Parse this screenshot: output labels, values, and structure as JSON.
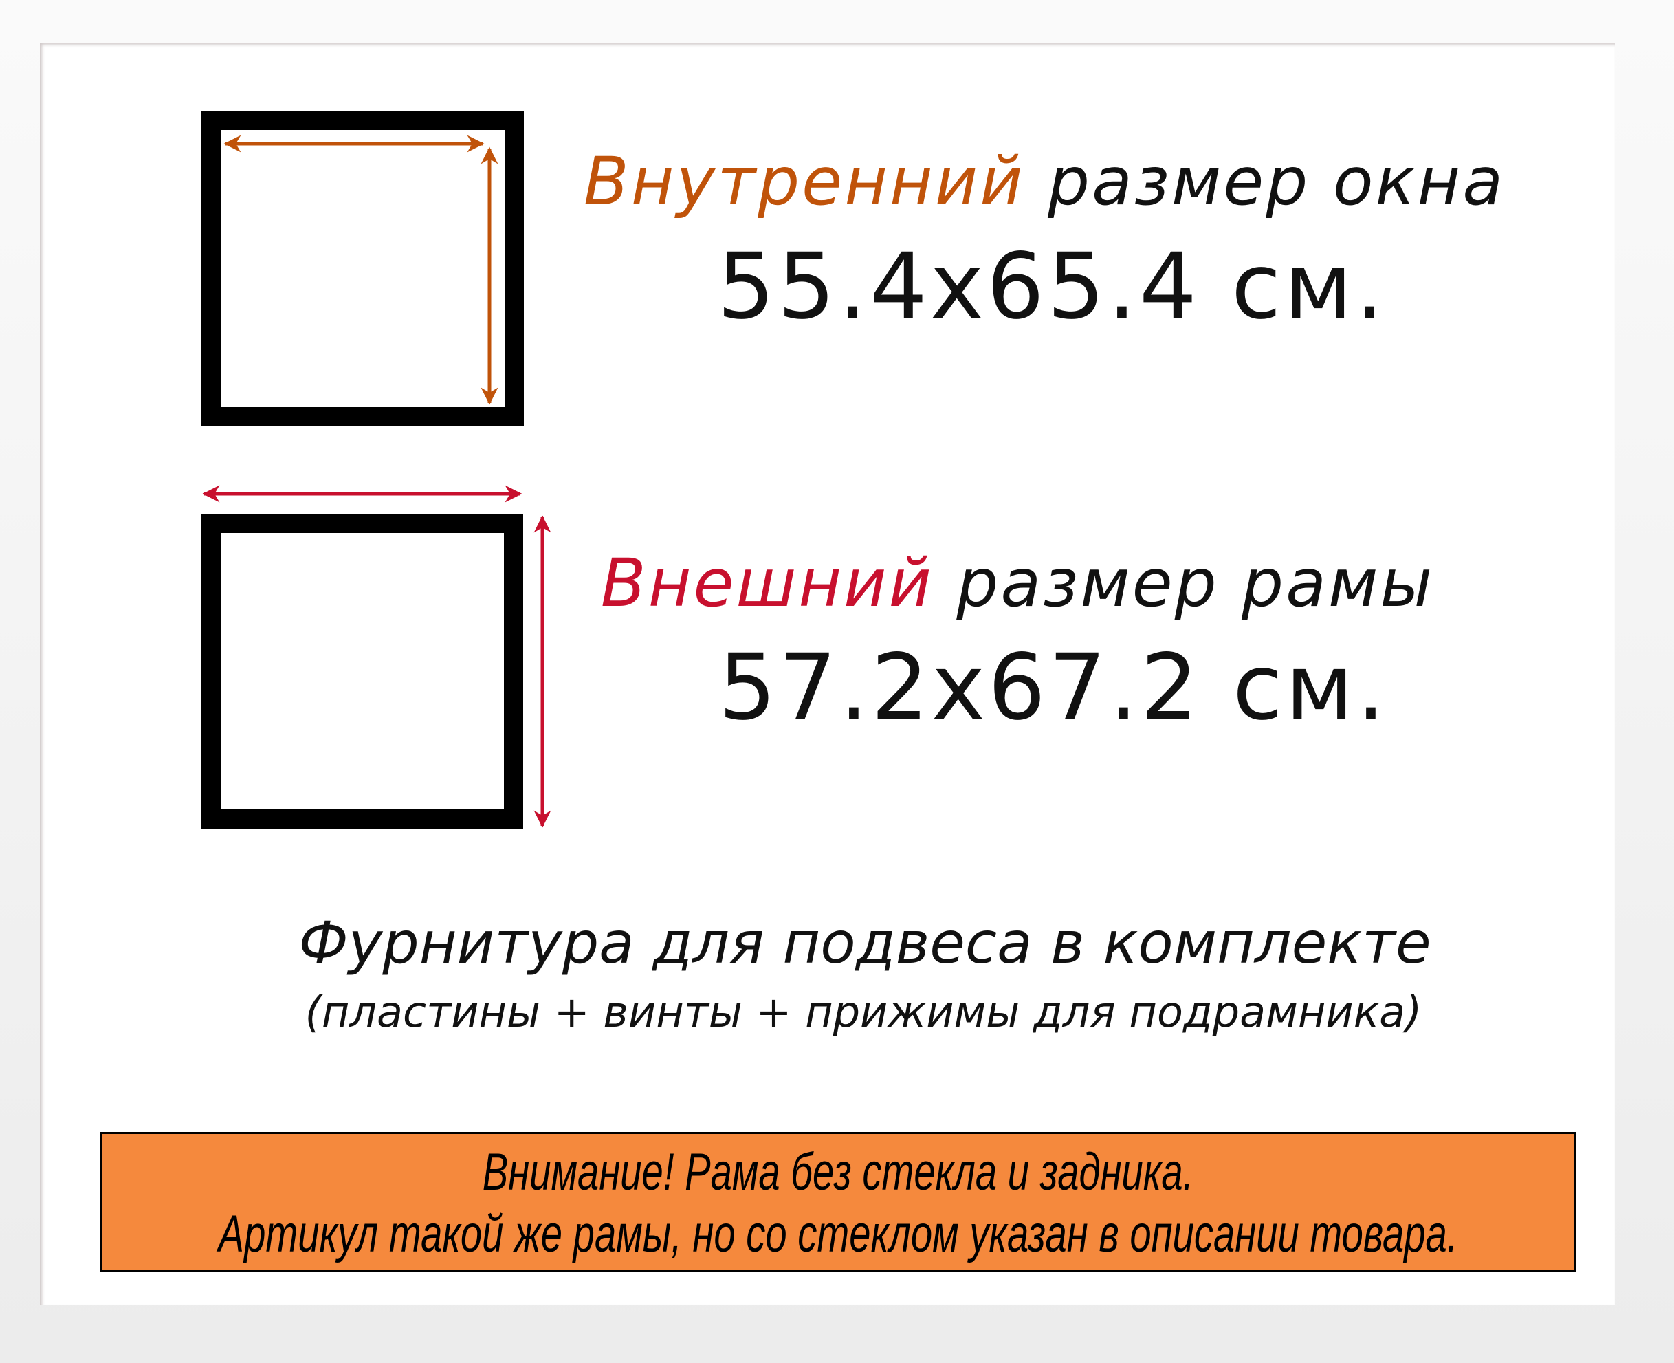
{
  "inner": {
    "accent": "Внутренний",
    "rest": " размер окна",
    "size": "55.4x65.4 см.",
    "color": "#C0530A"
  },
  "outer": {
    "accent": "Внешний",
    "rest": " размер рамы",
    "size": "57.2x67.2 см.",
    "color": "#C8102E"
  },
  "hardware": {
    "title": "Фурнитура для подвеса в комплекте",
    "details": "(пластины + винты + прижимы для подрамника)"
  },
  "notice": {
    "line1": "Внимание! Рама без стекла и задника.",
    "line2": "Артикул такой же рамы, но со стеклом указан в описании товара.",
    "background": "#F5893D"
  }
}
